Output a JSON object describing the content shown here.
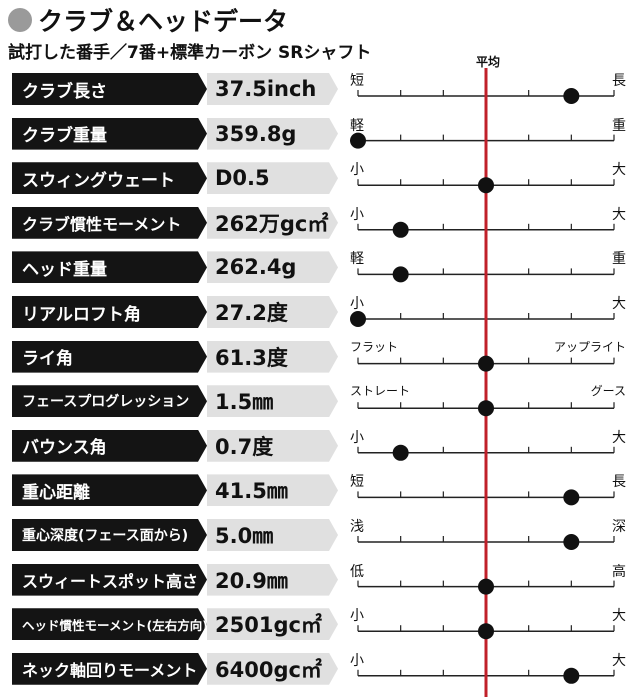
{
  "header": {
    "title": "クラブ＆ヘッドデータ",
    "subtitle": "試打した番手／7番+標準カーボン SRシャフト",
    "average_label": "平均"
  },
  "colors": {
    "name_box": "#141414",
    "value_box": "#e0e0e0",
    "average_line": "#c0202a",
    "marker": "#111111",
    "title_dot": "#9a9a9a"
  },
  "chart_data": {
    "type": "scatter",
    "title": "クラブ＆ヘッドデータ",
    "subtitle": "試打した番手／7番+標準カーボン SRシャフト",
    "scale": {
      "min": -3,
      "max": 3,
      "average": 0,
      "ticks": 7
    },
    "average_label": "平均",
    "rows": [
      {
        "name": "クラブ長さ",
        "value": "37.5inch",
        "left": "短",
        "right": "長",
        "position": 2
      },
      {
        "name": "クラブ重量",
        "value": "359.8g",
        "left": "軽",
        "right": "重",
        "position": -3
      },
      {
        "name": "スウィングウェート",
        "value": "D0.5",
        "left": "小",
        "right": "大",
        "position": 0
      },
      {
        "name": "クラブ慣性モーメント",
        "value": "262万gc㎡",
        "left": "小",
        "right": "大",
        "position": -2
      },
      {
        "name": "ヘッド重量",
        "value": "262.4g",
        "left": "軽",
        "right": "重",
        "position": -2
      },
      {
        "name": "リアルロフト角",
        "value": "27.2度",
        "left": "小",
        "right": "大",
        "position": -3
      },
      {
        "name": "ライ角",
        "value": "61.3度",
        "left": "フラット",
        "right": "アップライト",
        "position": 0
      },
      {
        "name": "フェースプログレッション",
        "value": "1.5㎜",
        "left": "ストレート",
        "right": "グース",
        "position": 0
      },
      {
        "name": "バウンス角",
        "value": "0.7度",
        "left": "小",
        "right": "大",
        "position": -2
      },
      {
        "name": "重心距離",
        "value": "41.5㎜",
        "left": "短",
        "right": "長",
        "position": 2
      },
      {
        "name": "重心深度(フェース面から)",
        "value": "5.0㎜",
        "left": "浅",
        "right": "深",
        "position": 2
      },
      {
        "name": "スウィートスポット高さ",
        "value": "20.9㎜",
        "left": "低",
        "right": "高",
        "position": 0
      },
      {
        "name": "ヘッド慣性モーメント(左右方向)",
        "value": "2501gc㎡",
        "left": "小",
        "right": "大",
        "position": 0
      },
      {
        "name": "ネック軸回りモーメント",
        "value": "6400gc㎡",
        "left": "小",
        "right": "大",
        "position": 2
      }
    ]
  }
}
